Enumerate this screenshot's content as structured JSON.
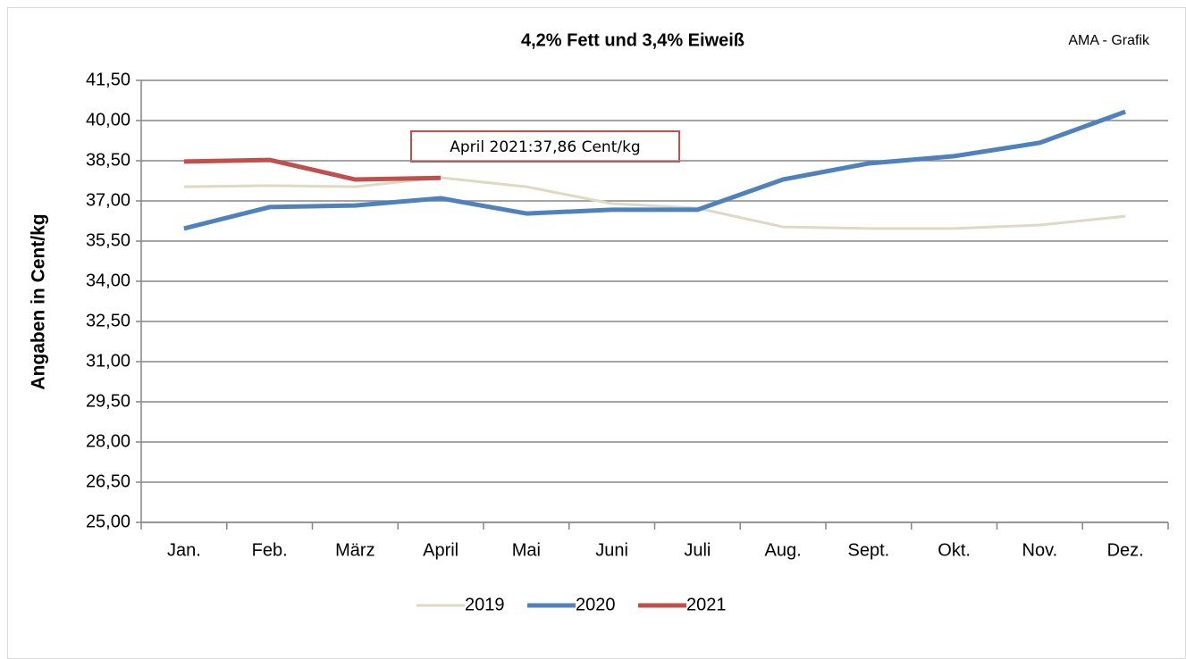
{
  "chart_data": {
    "type": "line",
    "title": "4,2% Fett und 3,4% Eiweiß",
    "source_label": "AMA - Grafik",
    "y_label": "Angaben in Cent/kg",
    "annotation": "April 2021:37,86 Cent/kg",
    "categories": [
      "Jan.",
      "Feb.",
      "März",
      "April",
      "Mai",
      "Juni",
      "Juli",
      "Aug.",
      "Sept.",
      "Okt.",
      "Nov.",
      "Dez."
    ],
    "series": [
      {
        "name": "2019",
        "color": "#ddd9c3",
        "width": 3,
        "values": [
          37.53,
          37.57,
          37.53,
          37.87,
          37.53,
          36.9,
          36.73,
          36.03,
          35.97,
          35.97,
          36.1,
          36.43
        ]
      },
      {
        "name": "2020",
        "color": "#4f81bd",
        "width": 5,
        "values": [
          35.97,
          36.77,
          36.83,
          37.1,
          36.53,
          36.67,
          36.67,
          37.8,
          38.4,
          38.67,
          39.17,
          40.33
        ]
      },
      {
        "name": "2021",
        "color": "#c0504d",
        "width": 5,
        "values": [
          38.47,
          38.53,
          37.8,
          37.86,
          null,
          null,
          null,
          null,
          null,
          null,
          null,
          null
        ]
      }
    ],
    "ylim": [
      25,
      41.5
    ],
    "yticks": [
      {
        "value": 25,
        "label": "25,00"
      },
      {
        "value": 26.5,
        "label": "26,50"
      },
      {
        "value": 28,
        "label": "28,00"
      },
      {
        "value": 29.5,
        "label": "29,50"
      },
      {
        "value": 31,
        "label": "31,00"
      },
      {
        "value": 32.5,
        "label": "32,50"
      },
      {
        "value": 34,
        "label": "34,00"
      },
      {
        "value": 35.5,
        "label": "35,50"
      },
      {
        "value": 37,
        "label": "37,00"
      },
      {
        "value": 38.5,
        "label": "38,50"
      },
      {
        "value": 40,
        "label": "40,00"
      },
      {
        "value": 41.5,
        "label": "41,50"
      }
    ],
    "grid": true
  }
}
